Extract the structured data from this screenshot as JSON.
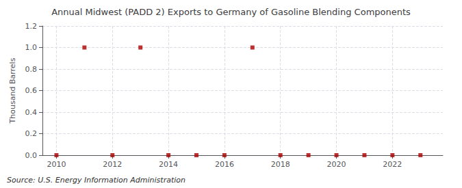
{
  "chart_data": {
    "type": "scatter",
    "title": "Annual Midwest (PADD 2) Exports to Germany of Gasoline Blending Components",
    "ylabel": "Thousand Barrels",
    "annotation": "Source: U.S. Energy Information Administration",
    "x": [
      2010,
      2011,
      2012,
      2013,
      2014,
      2015,
      2016,
      2017,
      2018,
      2019,
      2020,
      2021,
      2022,
      2023
    ],
    "values": [
      0,
      1,
      0,
      1,
      0,
      0,
      0,
      1,
      0,
      0,
      0,
      0,
      0,
      0
    ],
    "color": "#aa0000",
    "marker": "square",
    "xlim": [
      2009.5,
      2023.8
    ],
    "xticks": [
      2010,
      2012,
      2014,
      2016,
      2018,
      2020,
      2022
    ],
    "ylim": [
      0.0,
      1.2
    ],
    "yticks": [
      {
        "value": 0,
        "label": "0.0"
      },
      0.2,
      0.4,
      0.6,
      0.8,
      {
        "value": 1,
        "label": "1.0"
      },
      1.2
    ],
    "grid": true
  }
}
